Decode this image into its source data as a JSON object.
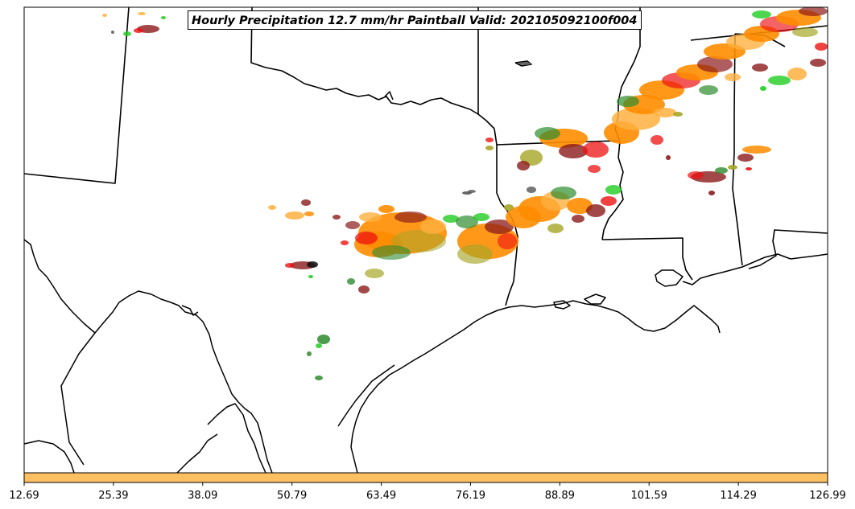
{
  "title": "Hourly Precipitation 12.7 mm/hr Paintball Valid: 202105092100f004",
  "colorbar": {
    "color": "#ffc064",
    "ticks": [
      "12.69",
      "25.39",
      "38.09",
      "50.79",
      "63.49",
      "76.19",
      "88.89",
      "101.59",
      "114.29",
      "126.99"
    ]
  },
  "colors": {
    "orange": "#ff8c00",
    "dark_red": "#8b1a1a",
    "red": "#ee1111",
    "green": "#22cc22",
    "dark_green": "#2e8b2e",
    "olive": "#a6a628",
    "light_orange": "#ffb040",
    "gray": "#555555",
    "pink_red": "#e84040"
  }
}
